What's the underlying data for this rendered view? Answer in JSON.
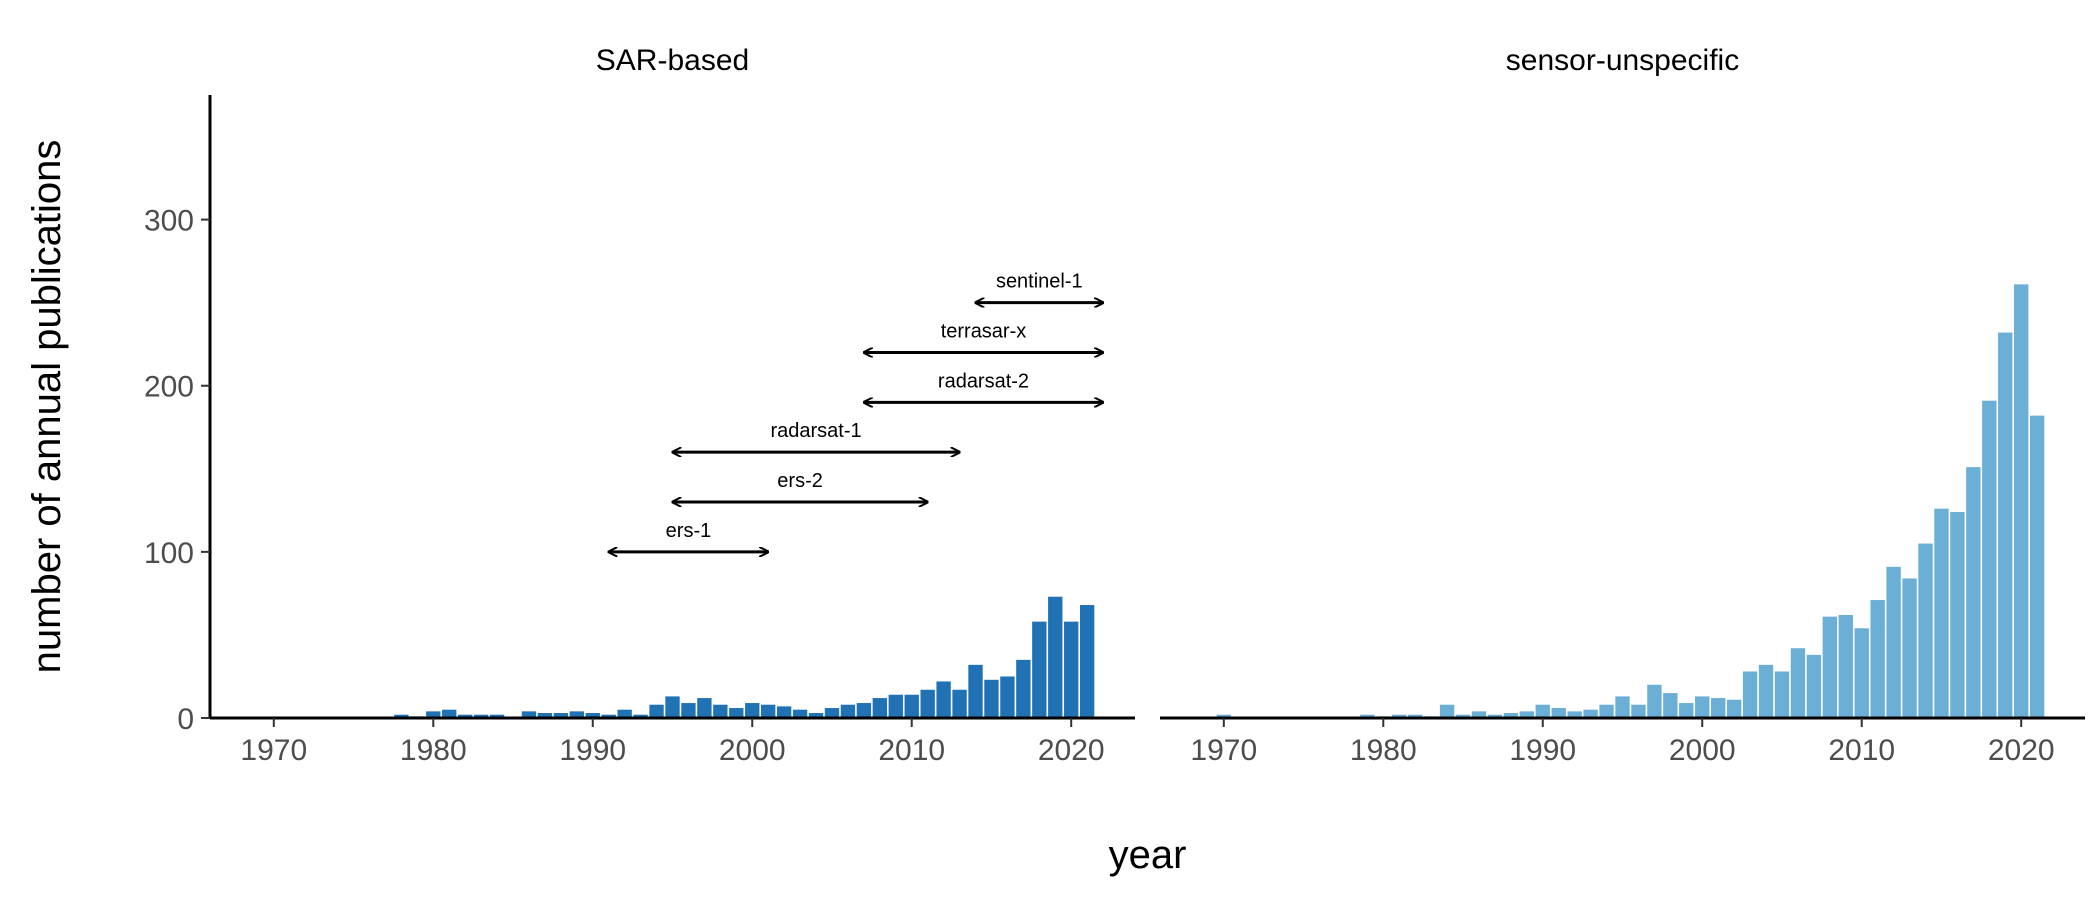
{
  "chart_data": {
    "type": "bar",
    "xlabel": "year",
    "ylabel": "number of annual publications",
    "ylim": [
      0,
      375
    ],
    "xlim": [
      1966,
      2024
    ],
    "y_ticks": [
      0,
      100,
      200,
      300
    ],
    "x_ticks": [
      1970,
      1980,
      1990,
      2000,
      2010,
      2020
    ],
    "grid": false,
    "panels": [
      {
        "title": "SAR-based",
        "color": "#2171b5",
        "x": [
          1978,
          1979,
          1980,
          1981,
          1982,
          1983,
          1984,
          1985,
          1986,
          1987,
          1988,
          1989,
          1990,
          1991,
          1992,
          1993,
          1994,
          1995,
          1996,
          1997,
          1998,
          1999,
          2000,
          2001,
          2002,
          2003,
          2004,
          2005,
          2006,
          2007,
          2008,
          2009,
          2010,
          2011,
          2012,
          2013,
          2014,
          2015,
          2016,
          2017,
          2018,
          2019,
          2020,
          2021
        ],
        "values": [
          2,
          1,
          4,
          5,
          2,
          2,
          2,
          0,
          4,
          3,
          3,
          4,
          3,
          2,
          5,
          2,
          8,
          13,
          9,
          12,
          8,
          6,
          9,
          8,
          7,
          5,
          3,
          6,
          8,
          9,
          12,
          14,
          14,
          17,
          22,
          17,
          32,
          23,
          25,
          35,
          58,
          73,
          58,
          68
        ],
        "annotations": [
          {
            "label": "ers-1",
            "start": 1991,
            "end": 2001,
            "y": 100
          },
          {
            "label": "ers-2",
            "start": 1995,
            "end": 2011,
            "y": 130
          },
          {
            "label": "radarsat-1",
            "start": 1995,
            "end": 2013,
            "y": 160
          },
          {
            "label": "radarsat-2",
            "start": 2007,
            "end": 2022,
            "y": 190
          },
          {
            "label": "terrasar-x",
            "start": 2007,
            "end": 2022,
            "y": 220
          },
          {
            "label": "sentinel-1",
            "start": 2014,
            "end": 2022,
            "y": 250
          }
        ]
      },
      {
        "title": "sensor-unspecific",
        "color": "#6baed6",
        "x": [
          1970,
          1971,
          1972,
          1973,
          1974,
          1975,
          1976,
          1977,
          1978,
          1979,
          1980,
          1981,
          1982,
          1983,
          1984,
          1985,
          1986,
          1987,
          1988,
          1989,
          1990,
          1991,
          1992,
          1993,
          1994,
          1995,
          1996,
          1997,
          1998,
          1999,
          2000,
          2001,
          2002,
          2003,
          2004,
          2005,
          2006,
          2007,
          2008,
          2009,
          2010,
          2011,
          2012,
          2013,
          2014,
          2015,
          2016,
          2017,
          2018,
          2019,
          2020,
          2021
        ],
        "values": [
          2,
          0,
          0,
          0,
          0,
          0,
          0,
          0,
          0,
          2,
          1,
          2,
          2,
          1,
          8,
          2,
          4,
          2,
          3,
          4,
          8,
          6,
          4,
          5,
          8,
          13,
          8,
          20,
          15,
          9,
          13,
          12,
          11,
          28,
          32,
          28,
          42,
          38,
          61,
          62,
          54,
          71,
          91,
          84,
          105,
          126,
          124,
          151,
          191,
          232,
          261,
          182
        ],
        "annotations": []
      }
    ]
  }
}
